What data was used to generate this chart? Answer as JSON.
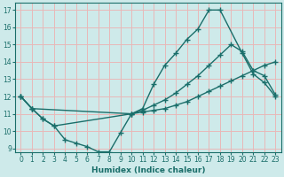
{
  "bg_color": "#ceeaea",
  "grid_color": "#e8b8b8",
  "line_color": "#1a6e6a",
  "xlabel": "Humidex (Indice chaleur)",
  "xlim": [
    -0.5,
    23.5
  ],
  "ylim": [
    8.8,
    17.4
  ],
  "yticks": [
    9,
    10,
    11,
    12,
    13,
    14,
    15,
    16,
    17
  ],
  "xticks": [
    0,
    1,
    2,
    3,
    4,
    5,
    6,
    7,
    8,
    9,
    10,
    11,
    12,
    13,
    14,
    15,
    16,
    17,
    18,
    19,
    20,
    21,
    22,
    23
  ],
  "line1_x": [
    0,
    1,
    2,
    3,
    10,
    11,
    12,
    13,
    14,
    15,
    16,
    17,
    18,
    20,
    21,
    22,
    23
  ],
  "line1_y": [
    12,
    11.3,
    10.7,
    10.3,
    11.0,
    11.3,
    12.7,
    13.8,
    14.5,
    15.3,
    15.9,
    17.0,
    17.0,
    14.5,
    13.3,
    12.8,
    12.0
  ],
  "line2_x": [
    0,
    1,
    10,
    11,
    12,
    13,
    14,
    15,
    16,
    17,
    18,
    19,
    20,
    21,
    22,
    23
  ],
  "line2_y": [
    12,
    11.3,
    11.0,
    11.2,
    11.5,
    11.8,
    12.2,
    12.7,
    13.2,
    13.8,
    14.4,
    15.0,
    14.6,
    13.5,
    13.2,
    12.1
  ],
  "line3_x": [
    0,
    1,
    2,
    3,
    4,
    5,
    6,
    7,
    8,
    9,
    10,
    11,
    12,
    13,
    14,
    15,
    16,
    17,
    18,
    19,
    20,
    21,
    22,
    23
  ],
  "line3_y": [
    12,
    11.3,
    10.7,
    10.3,
    9.5,
    9.3,
    9.1,
    8.8,
    8.8,
    9.9,
    11.0,
    11.1,
    11.2,
    11.3,
    11.5,
    11.7,
    12.0,
    12.3,
    12.6,
    12.9,
    13.2,
    13.5,
    13.8,
    14.0
  ],
  "marker": "+",
  "markersize": 4,
  "linewidth": 1.0,
  "markeredgewidth": 1.0
}
